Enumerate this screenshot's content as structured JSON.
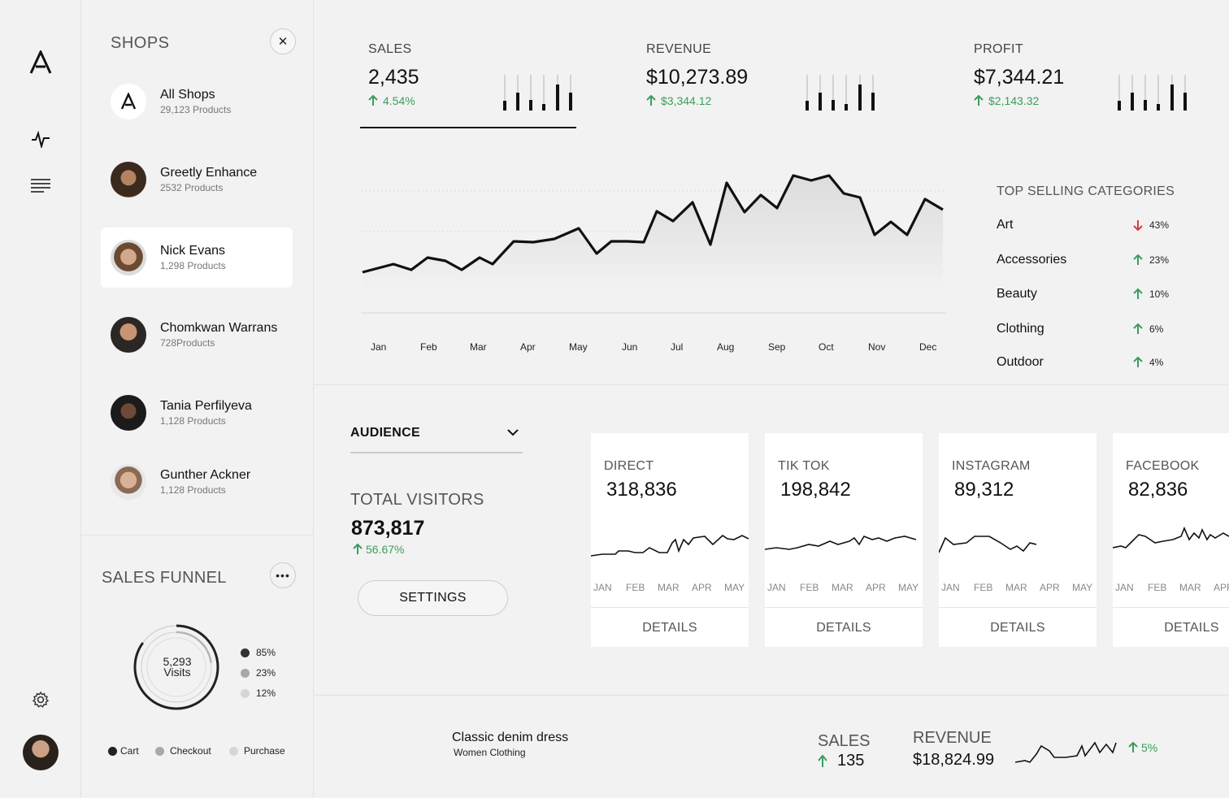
{
  "icons": {
    "logo": "logo-icon",
    "pulse": "activity-icon",
    "menu": "list-icon",
    "settings": "gear-icon",
    "close": "close-icon",
    "more": "more-icon",
    "dropdown": "chevron-down-icon",
    "up": "arrow-up-icon",
    "down": "arrow-down-icon"
  },
  "colors": {
    "positive": "#3a9d5d",
    "negative": "#d93b3b"
  },
  "shops": {
    "title": "SHOPS",
    "items": [
      {
        "name": "All Shops",
        "count": "29,123 Products"
      },
      {
        "name": "Greetly Enhance",
        "count": "2532 Products"
      },
      {
        "name": "Nick Evans",
        "count": "1,298 Products"
      },
      {
        "name": "Chomkwan Warrans",
        "count": "728Products"
      },
      {
        "name": "Tania Perfilyeva",
        "count": "1,128 Products"
      },
      {
        "name": "Gunther Ackner",
        "count": "1,128 Products"
      }
    ],
    "selected": "Nick Evans"
  },
  "funnel": {
    "title": "SALES FUNNEL",
    "center_value": "5,293",
    "center_label": "Visits",
    "legend_pcts": [
      "85%",
      "23%",
      "12%"
    ],
    "stages": [
      "Cart",
      "Checkout",
      "Purchase"
    ]
  },
  "kpis": [
    {
      "label": "SALES",
      "value": "2,435",
      "change": "4.54%"
    },
    {
      "label": "REVENUE",
      "value": "$10,273.89",
      "change": "$3,344.12"
    },
    {
      "label": "PROFIT",
      "value": "$7,344.21",
      "change": "$2,143.32"
    }
  ],
  "chart": {
    "months": [
      "Jan",
      "Feb",
      "Mar",
      "Apr",
      "May",
      "Jun",
      "Jul",
      "Aug",
      "Sep",
      "Oct",
      "Nov",
      "Dec"
    ]
  },
  "top_categories": {
    "title": "TOP SELLING CATEGORIES",
    "items": [
      {
        "name": "Art",
        "pct": "43%",
        "dir": "down"
      },
      {
        "name": "Accessories",
        "pct": "23%",
        "dir": "up"
      },
      {
        "name": "Beauty",
        "pct": "10%",
        "dir": "up"
      },
      {
        "name": "Clothing",
        "pct": "6%",
        "dir": "up"
      },
      {
        "name": "Outdoor",
        "pct": "4%",
        "dir": "up"
      }
    ]
  },
  "audience": {
    "select_value": "AUDIENCE",
    "total_label": "TOTAL VISITORS",
    "total_value": "873,817",
    "total_change": "56.67%",
    "settings_label": "SETTINGS"
  },
  "channels": [
    {
      "label": "DIRECT",
      "value": "318,836",
      "months": [
        "JAN",
        "FEB",
        "MAR",
        "APR",
        "MAY"
      ],
      "details": "DETAILS"
    },
    {
      "label": "TIK TOK",
      "value": "198,842",
      "months": [
        "JAN",
        "FEB",
        "MAR",
        "APR",
        "MAY"
      ],
      "details": "DETAILS"
    },
    {
      "label": "INSTAGRAM",
      "value": "89,312",
      "months": [
        "JAN",
        "FEB",
        "MAR",
        "APR",
        "MAY"
      ],
      "details": "DETAILS"
    },
    {
      "label": "FACEBOOK",
      "value": "82,836",
      "months": [
        "JAN",
        "FEB",
        "MAR",
        "APR"
      ],
      "details": "DETAILS"
    }
  ],
  "product": {
    "name": "Classic denim dress",
    "category": "Women Clothing",
    "sales_label": "SALES",
    "sales_value": "135",
    "revenue_label": "REVENUE",
    "revenue_value": "$18,824.99",
    "change": "5%"
  }
}
